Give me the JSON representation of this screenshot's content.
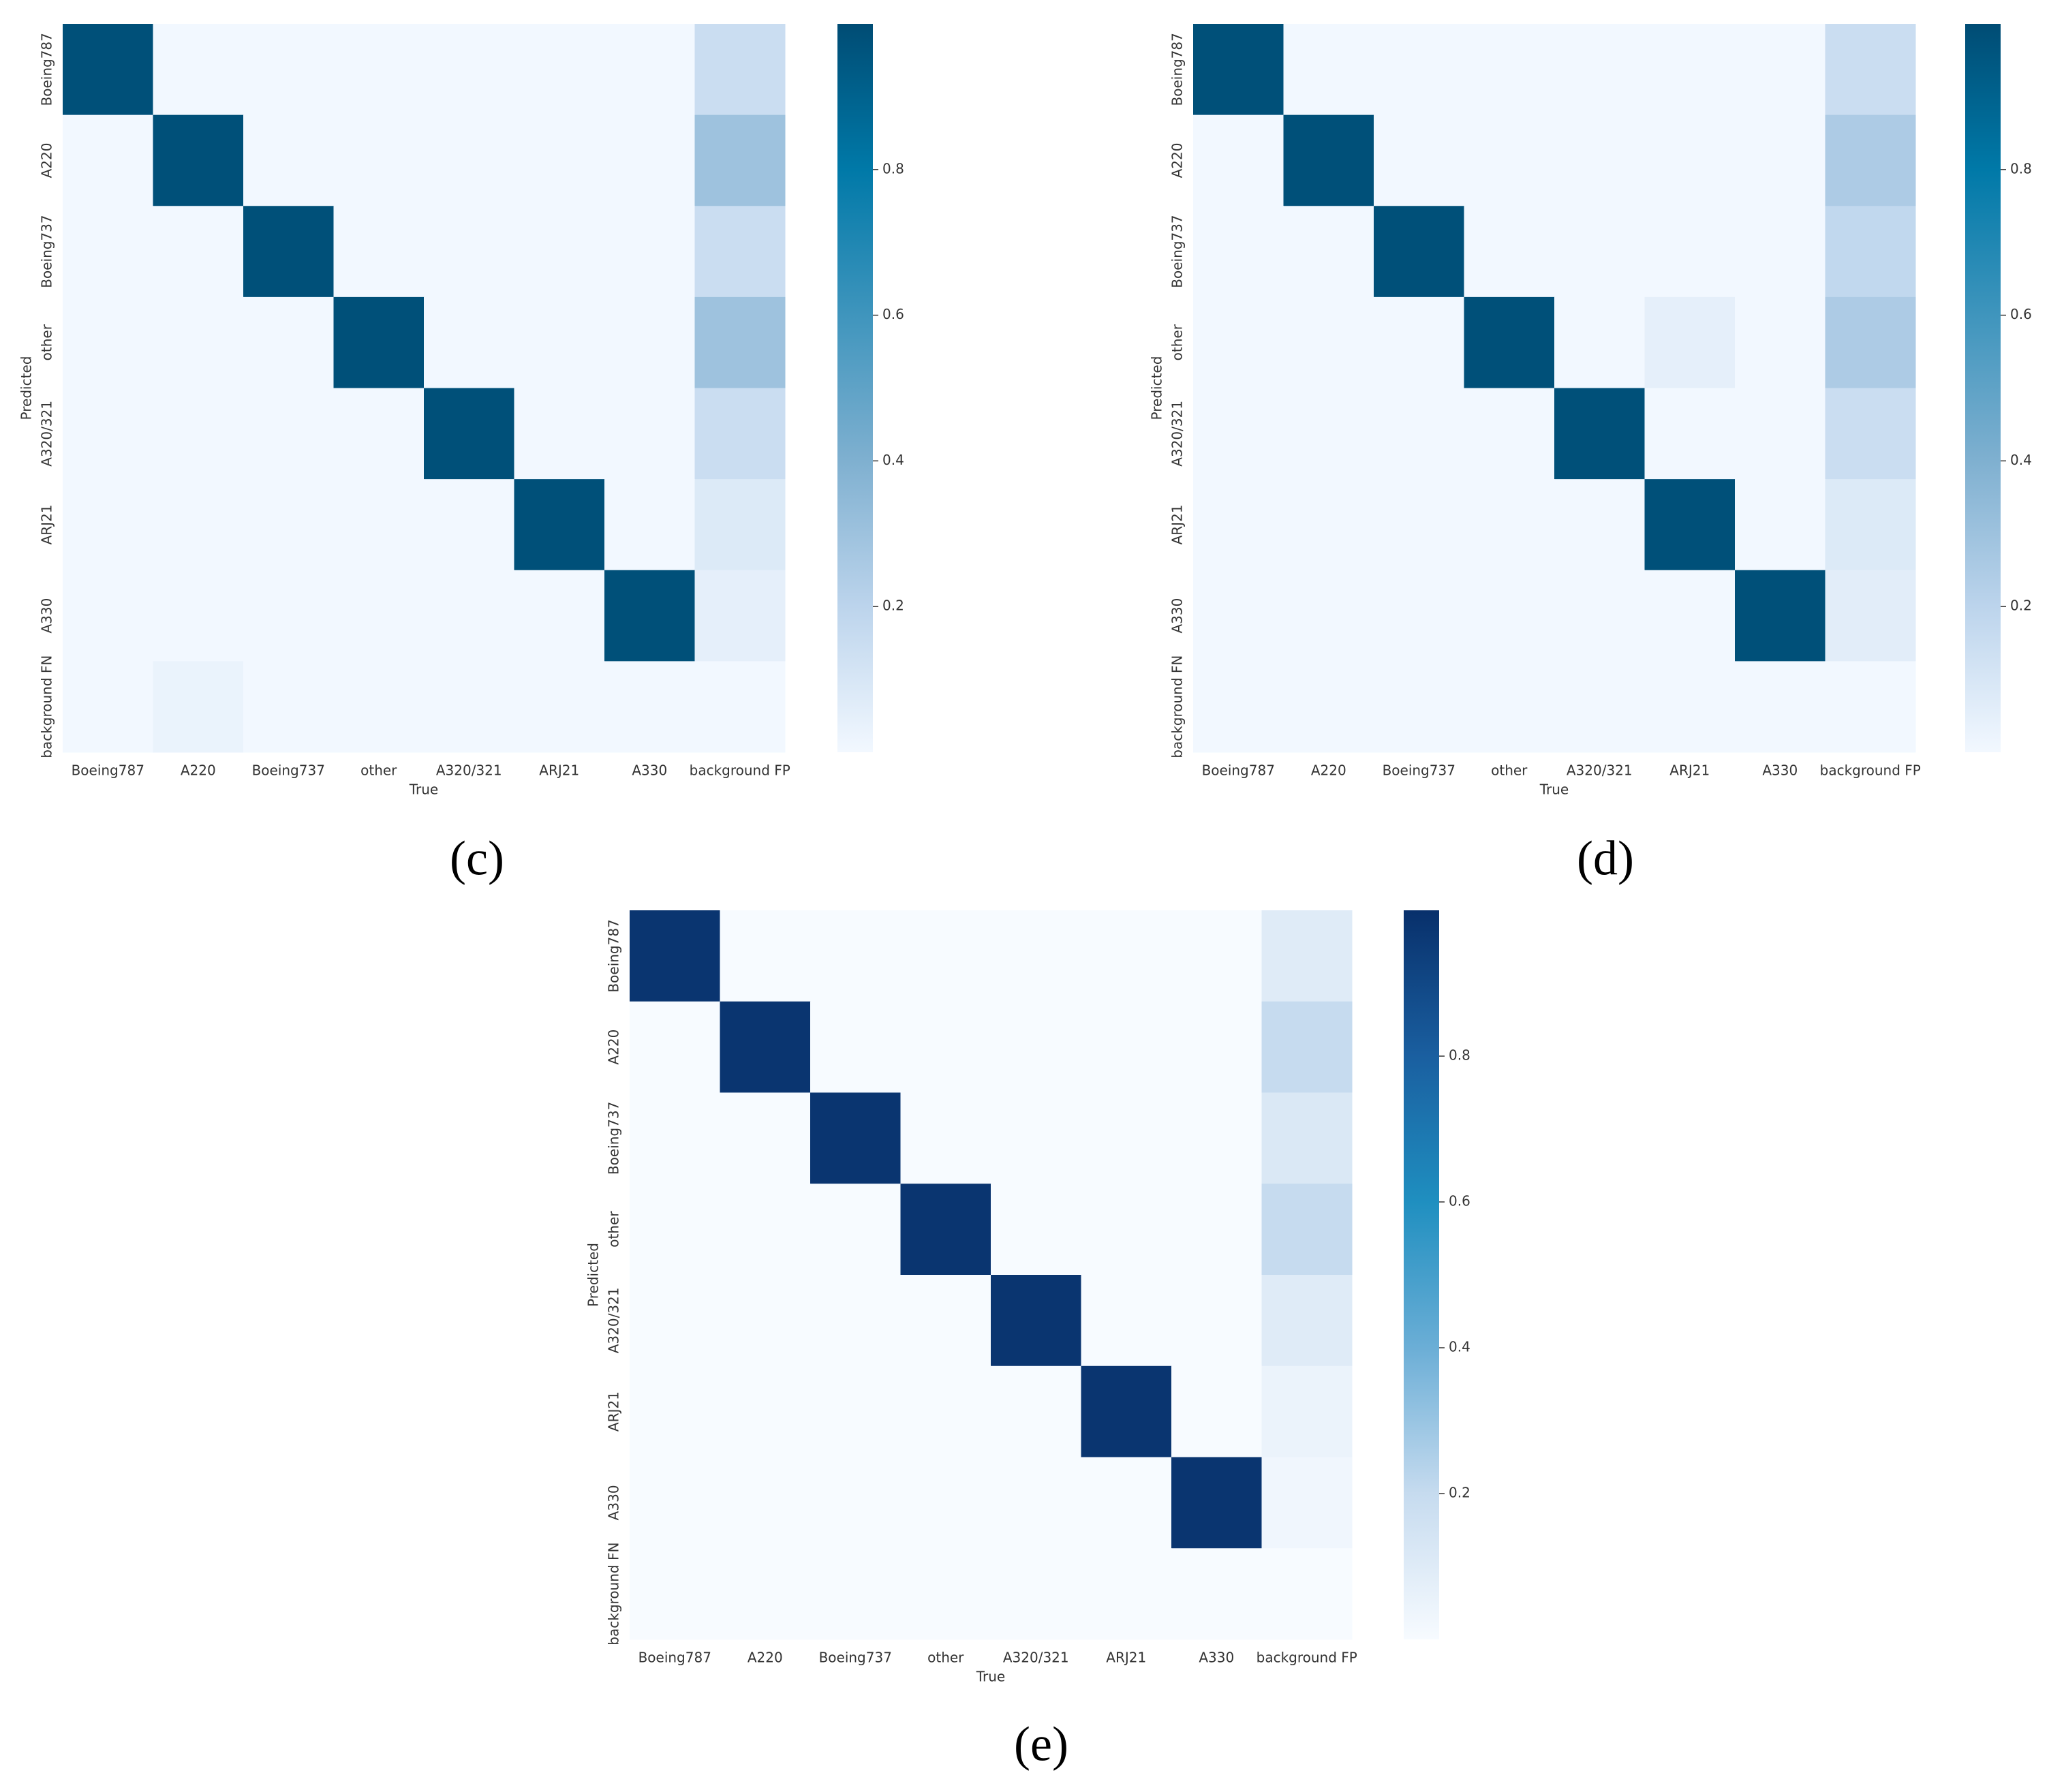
{
  "chart_data": [
    {
      "type": "heatmap",
      "panel_label": "(c)",
      "xlabel": "True",
      "ylabel": "Predicted",
      "x_categories": [
        "Boeing787",
        "A220",
        "Boeing737",
        "other",
        "A320/321",
        "ARJ21",
        "A330",
        "background FP"
      ],
      "y_categories": [
        "Boeing787",
        "A220",
        "Boeing737",
        "other",
        "A320/321",
        "ARJ21",
        "A330",
        "background FN"
      ],
      "values": [
        [
          0.98,
          0,
          0,
          0,
          0,
          0,
          0,
          0.15
        ],
        [
          0,
          0.98,
          0,
          0,
          0,
          0,
          0,
          0.3
        ],
        [
          0,
          0,
          0.98,
          0,
          0,
          0,
          0,
          0.15
        ],
        [
          0,
          0,
          0,
          0.98,
          0,
          0,
          0,
          0.3
        ],
        [
          0,
          0,
          0,
          0,
          0.98,
          0,
          0,
          0.15
        ],
        [
          0,
          0,
          0,
          0,
          0,
          0.98,
          0,
          0.08
        ],
        [
          0,
          0,
          0,
          0,
          0,
          0,
          0.98,
          0.05
        ],
        [
          0,
          0.03,
          0,
          0,
          0,
          0,
          0,
          0
        ]
      ],
      "colormap": [
        "#f2f8ff",
        "#bcd4ec",
        "#7fb0d0",
        "#3f95bd",
        "#0079a8",
        "#004c74"
      ],
      "zlim": [
        0,
        1
      ],
      "zticks": [
        0.2,
        0.4,
        0.6,
        0.8
      ]
    },
    {
      "type": "heatmap",
      "panel_label": "(d)",
      "xlabel": "True",
      "ylabel": "Predicted",
      "x_categories": [
        "Boeing787",
        "A220",
        "Boeing737",
        "other",
        "A320/321",
        "ARJ21",
        "A330",
        "background FP"
      ],
      "y_categories": [
        "Boeing787",
        "A220",
        "Boeing737",
        "other",
        "A320/321",
        "ARJ21",
        "A330",
        "background FN"
      ],
      "values": [
        [
          0.98,
          0,
          0,
          0,
          0,
          0,
          0,
          0.15
        ],
        [
          0,
          0.98,
          0,
          0,
          0,
          0,
          0,
          0.25
        ],
        [
          0,
          0,
          0.98,
          0,
          0,
          0,
          0,
          0.18
        ],
        [
          0,
          0,
          0,
          0.98,
          0,
          0.05,
          0,
          0.25
        ],
        [
          0,
          0,
          0,
          0,
          0.98,
          0,
          0,
          0.15
        ],
        [
          0,
          0,
          0,
          0,
          0,
          0.98,
          0,
          0.08
        ],
        [
          0,
          0,
          0,
          0,
          0,
          0,
          0.98,
          0.06
        ],
        [
          0,
          0,
          0,
          0,
          0,
          0,
          0,
          0
        ]
      ],
      "colormap": [
        "#f2f8ff",
        "#bcd4ec",
        "#7fb0d0",
        "#3f95bd",
        "#0079a8",
        "#004c74"
      ],
      "zlim": [
        0,
        1
      ],
      "zticks": [
        0.2,
        0.4,
        0.6,
        0.8
      ]
    },
    {
      "type": "heatmap",
      "panel_label": "(e)",
      "xlabel": "True",
      "ylabel": "Predicted",
      "x_categories": [
        "Boeing787",
        "A220",
        "Boeing737",
        "other",
        "A320/321",
        "ARJ21",
        "A330",
        "background FP"
      ],
      "y_categories": [
        "Boeing787",
        "A220",
        "Boeing737",
        "other",
        "A320/321",
        "ARJ21",
        "A330",
        "background FN"
      ],
      "values": [
        [
          0.98,
          0,
          0,
          0,
          0,
          0,
          0,
          0.1
        ],
        [
          0,
          0.98,
          0,
          0,
          0,
          0,
          0,
          0.2
        ],
        [
          0,
          0,
          0.98,
          0,
          0,
          0,
          0,
          0.12
        ],
        [
          0,
          0,
          0,
          0.98,
          0,
          0,
          0,
          0.2
        ],
        [
          0,
          0,
          0,
          0,
          0.98,
          0,
          0,
          0.1
        ],
        [
          0,
          0,
          0,
          0,
          0,
          0.98,
          0,
          0.05
        ],
        [
          0,
          0,
          0,
          0,
          0,
          0,
          0.98,
          0.03
        ],
        [
          0,
          0,
          0,
          0,
          0,
          0,
          0,
          0
        ]
      ],
      "colormap": [
        "#f7fbff",
        "#c6dbef",
        "#6baed6",
        "#1f8fc0",
        "#1a5fa0",
        "#08306b"
      ],
      "zlim": [
        0,
        1
      ],
      "zticks": [
        0.2,
        0.4,
        0.6,
        0.8
      ]
    }
  ]
}
